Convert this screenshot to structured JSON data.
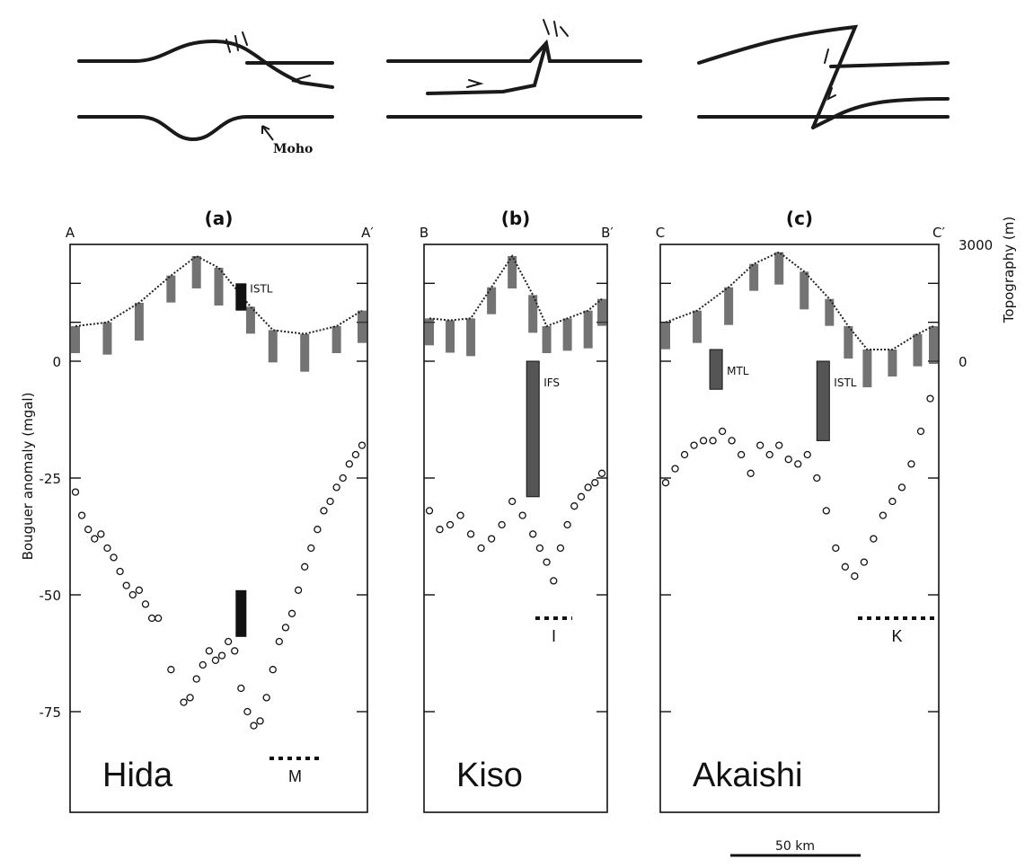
{
  "sketches": [
    {
      "id": "a",
      "moho_label": "Moho"
    },
    {
      "id": "b"
    },
    {
      "id": "c"
    }
  ],
  "y_axis": {
    "left_label": "Bouguer anomaly (mgal)",
    "right_label": "Topography (m)",
    "bouguer_ticks": [
      0,
      -25,
      -50,
      -75
    ],
    "bouguer_tick_labels": [
      "0",
      "-25",
      "-50",
      "-75"
    ],
    "topo_ticks": [
      0,
      3000
    ],
    "topo_tick_labels": [
      "0",
      "3000"
    ]
  },
  "scale_bar": {
    "label": "50 km",
    "length_km": 50
  },
  "chart_data": [
    {
      "type": "scatter",
      "panel_label": "(a)",
      "profile_start": "A",
      "profile_end": "A′",
      "region_name": "Hida",
      "ylim": [
        -95,
        0
      ],
      "x_range_km": [
        0,
        90
      ],
      "topography_m": {
        "x": [
          0,
          10,
          20,
          30,
          38,
          45,
          55,
          62,
          72,
          82,
          90
        ],
        "y": [
          900,
          1000,
          1500,
          2200,
          2700,
          2400,
          1400,
          800,
          700,
          900,
          1300
        ]
      },
      "bouguer_mgal": {
        "x": [
          0,
          2,
          4,
          6,
          8,
          10,
          12,
          14,
          16,
          18,
          20,
          22,
          24,
          26,
          30,
          34,
          36,
          38,
          40,
          42,
          44,
          46,
          48,
          50,
          52,
          54,
          56,
          58,
          60,
          62,
          64,
          66,
          68,
          70,
          72,
          74,
          76,
          78,
          80,
          82,
          84,
          86,
          88,
          90
        ],
        "y": [
          -28,
          -33,
          -36,
          -38,
          -37,
          -40,
          -42,
          -45,
          -48,
          -50,
          -49,
          -52,
          -55,
          -55,
          -66,
          -73,
          -72,
          -68,
          -65,
          -62,
          -64,
          -63,
          -60,
          -62,
          -70,
          -75,
          -78,
          -77,
          -72,
          -66,
          -60,
          -57,
          -54,
          -49,
          -44,
          -40,
          -36,
          -32,
          -30,
          -27,
          -25,
          -22,
          -20,
          -18
        ]
      },
      "fault_zone": {
        "label": "ISTL",
        "topo_top_m": 2000,
        "topo_bottom_m": 1300,
        "bouguer_top": -49,
        "bouguer_bottom": -59,
        "x_km": 52
      },
      "model_level": {
        "label": "M",
        "value": -85
      }
    },
    {
      "type": "scatter",
      "panel_label": "(b)",
      "profile_start": "B",
      "profile_end": "B′",
      "region_name": "Kiso",
      "ylim": [
        -95,
        0
      ],
      "x_range_km": [
        0,
        50
      ],
      "topography_m": {
        "x": [
          0,
          6,
          12,
          18,
          24,
          30,
          34,
          40,
          46,
          50
        ],
        "y": [
          1100,
          1050,
          1100,
          1900,
          2700,
          1700,
          900,
          1100,
          1300,
          1600
        ]
      },
      "bouguer_mgal": {
        "x": [
          0,
          3,
          6,
          9,
          12,
          15,
          18,
          21,
          24,
          27,
          30,
          32,
          34,
          36,
          38,
          40,
          42,
          44,
          46,
          48,
          50
        ],
        "y": [
          -32,
          -36,
          -35,
          -33,
          -37,
          -40,
          -38,
          -35,
          -30,
          -33,
          -37,
          -40,
          -43,
          -47,
          -40,
          -35,
          -31,
          -29,
          -27,
          -26,
          -24
        ]
      },
      "fault_zone": {
        "label": "IFS",
        "bouguer_top": 0,
        "bouguer_bottom": -29,
        "x_km": 30
      },
      "model_level": {
        "label": "I",
        "value": -55
      }
    },
    {
      "type": "scatter",
      "panel_label": "(c)",
      "profile_start": "C",
      "profile_end": "C′",
      "region_name": "Akaishi",
      "ylim": [
        -95,
        0
      ],
      "x_range_km": [
        0,
        85
      ],
      "topography_m": {
        "x": [
          0,
          10,
          20,
          28,
          36,
          44,
          52,
          58,
          64,
          72,
          80,
          85
        ],
        "y": [
          1000,
          1300,
          1900,
          2500,
          2800,
          2300,
          1600,
          900,
          300,
          300,
          700,
          900
        ]
      },
      "bouguer_mgal": {
        "x": [
          0,
          3,
          6,
          9,
          12,
          15,
          18,
          21,
          24,
          27,
          30,
          33,
          36,
          39,
          42,
          45,
          48,
          51,
          54,
          57,
          60,
          63,
          66,
          69,
          72,
          75,
          78,
          81,
          84
        ],
        "y": [
          -26,
          -23,
          -20,
          -18,
          -17,
          -17,
          -15,
          -17,
          -20,
          -24,
          -18,
          -20,
          -18,
          -21,
          -22,
          -20,
          -25,
          -32,
          -40,
          -44,
          -46,
          -43,
          -38,
          -33,
          -30,
          -27,
          -22,
          -15,
          -8
        ]
      },
      "fault_zones": [
        {
          "label": "MTL",
          "bouguer_top": 2.5,
          "bouguer_bottom": -6,
          "x_km": 16
        },
        {
          "label": "ISTL",
          "bouguer_top": 0,
          "bouguer_bottom": -17,
          "x_km": 50
        }
      ],
      "model_level": {
        "label": "K",
        "value": -55
      }
    }
  ]
}
